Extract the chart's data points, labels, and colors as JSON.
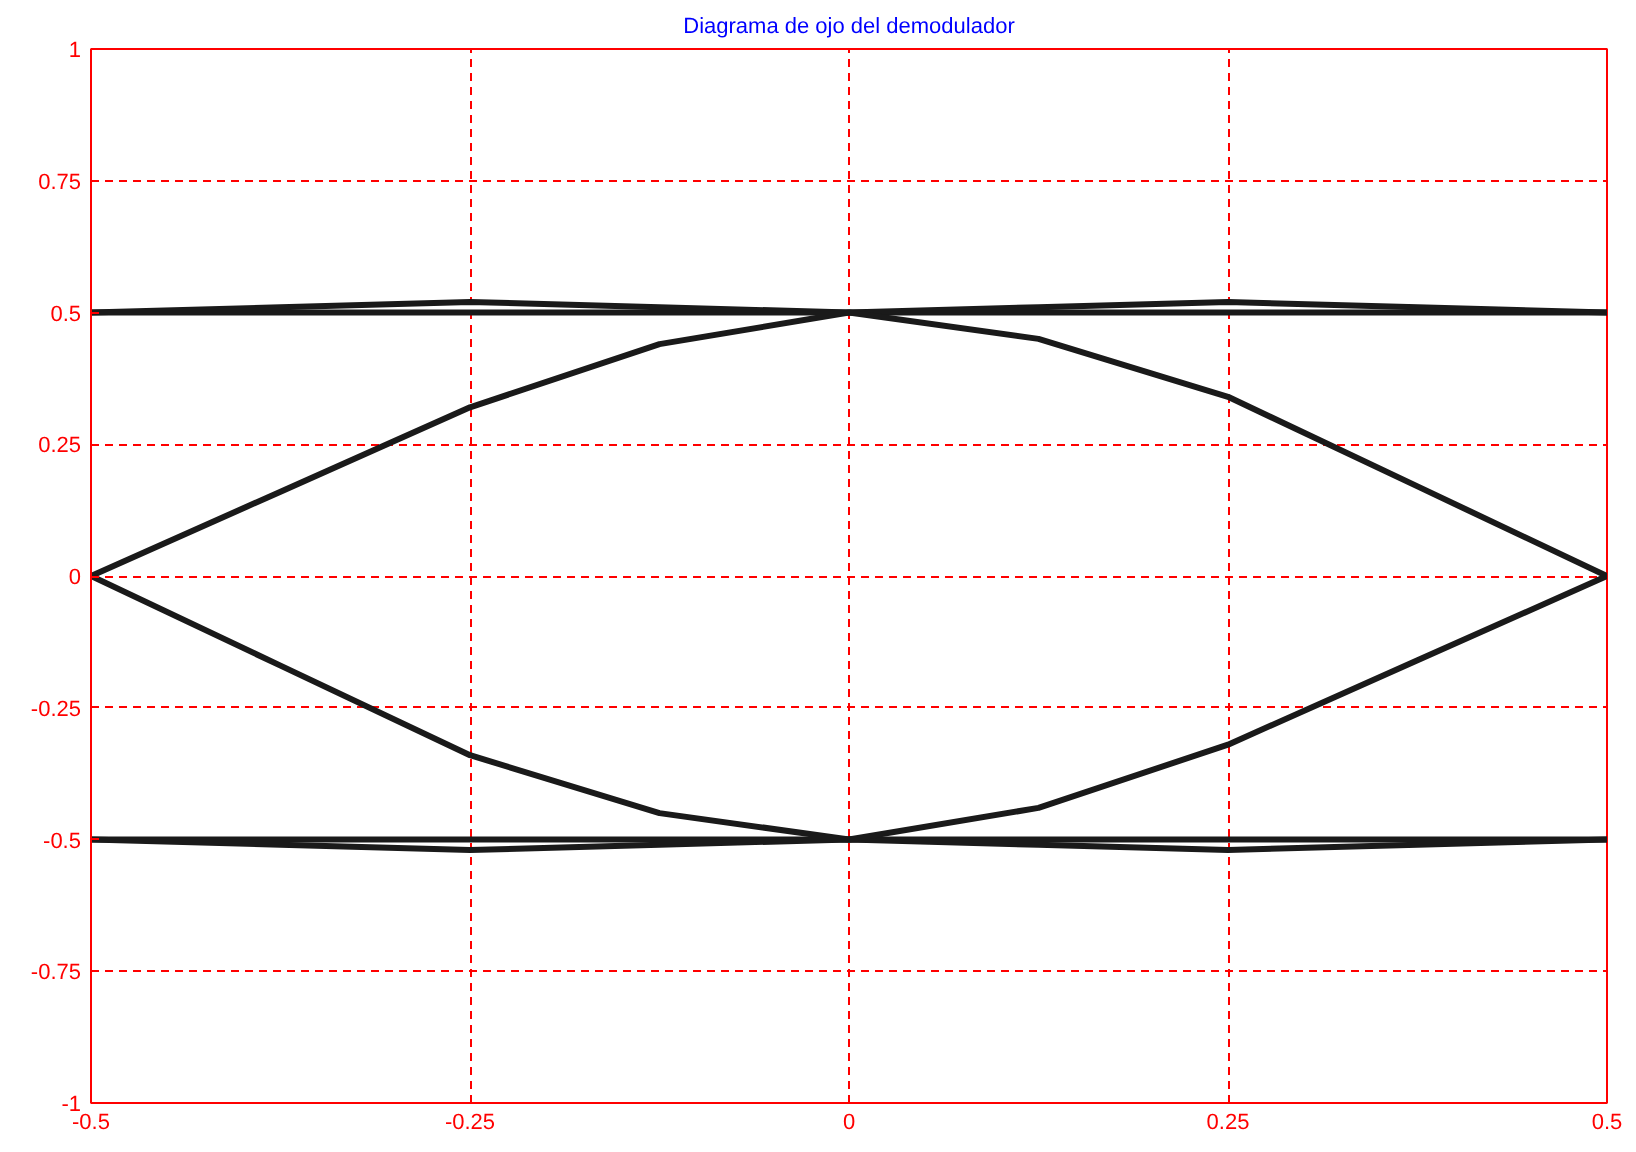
{
  "chart_data": {
    "type": "line",
    "title": "Diagrama de ojo del demodulador",
    "x": [
      -0.5,
      -0.375,
      -0.25,
      -0.125,
      0,
      0.125,
      0.25,
      0.375,
      0.5
    ],
    "series": [
      {
        "color": "#1a1a1a",
        "values": [
          0.5,
          0.51,
          0.52,
          0.51,
          0.5,
          0.51,
          0.52,
          0.51,
          0.5
        ]
      },
      {
        "color": "#1a1a1a",
        "values": [
          0,
          0.16,
          0.32,
          0.44,
          0.5,
          0.5,
          0.5,
          0.5,
          0.5
        ]
      },
      {
        "color": "#1a1a1a",
        "values": [
          0.5,
          0.5,
          0.5,
          0.5,
          0.5,
          0.45,
          0.34,
          0.17,
          0
        ]
      },
      {
        "color": "#1a1a1a",
        "values": [
          -0.5,
          -0.51,
          -0.52,
          -0.51,
          -0.5,
          -0.51,
          -0.52,
          -0.51,
          -0.5
        ]
      },
      {
        "color": "#1a1a1a",
        "values": [
          0,
          -0.17,
          -0.34,
          -0.45,
          -0.5,
          -0.5,
          -0.5,
          -0.5,
          -0.5
        ]
      },
      {
        "color": "#1a1a1a",
        "values": [
          -0.5,
          -0.5,
          -0.5,
          -0.5,
          -0.5,
          -0.44,
          -0.32,
          -0.16,
          0
        ]
      }
    ],
    "xlim": [
      -0.5,
      0.5
    ],
    "xticks": [
      -0.5,
      -0.25,
      0,
      0.25,
      0.5
    ],
    "ylim": [
      -1,
      1
    ],
    "yticks": [
      -1,
      -0.75,
      -0.5,
      -0.25,
      0,
      0.25,
      0.5,
      0.75,
      1
    ],
    "grid": true,
    "marker": "none",
    "line_style": "solid"
  }
}
